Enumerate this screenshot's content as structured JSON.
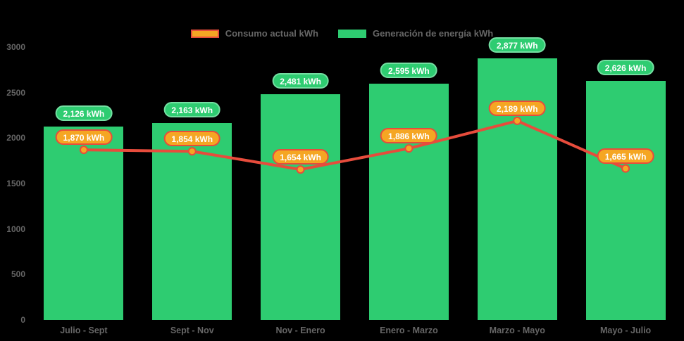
{
  "legend": {
    "items": [
      {
        "label": "Consumo actual kWh",
        "swatch_fill": "#f5a623",
        "swatch_border": "#e74c3c"
      },
      {
        "label": "Generación de energía kWh",
        "swatch_fill": "#2ecc71",
        "swatch_border": "#2ecc71"
      }
    ]
  },
  "colors": {
    "background": "#000000",
    "bar": "#2ecc71",
    "bar_badge_fill": "#2ecc71",
    "bar_badge_border": "#74dfa2",
    "line": "#e74c3c",
    "point_fill": "#f5a623",
    "point_border": "#e74c3c",
    "line_badge_fill": "#f5a623",
    "line_badge_border": "#e74c3c",
    "axis_text": "#666666",
    "badge_text": "#ffffff"
  },
  "chart_data": {
    "type": "bar",
    "categories": [
      "Julio - Sept",
      "Sept - Nov",
      "Nov - Enero",
      "Enero - Marzo",
      "Marzo - Mayo",
      "Mayo - Julio"
    ],
    "series": [
      {
        "name": "Generación de energía kWh",
        "type": "bar",
        "color": "#2ecc71",
        "values": [
          2126,
          2163,
          2481,
          2595,
          2877,
          2626
        ],
        "data_labels": [
          "2,126 kWh",
          "2,163 kWh",
          "2,481 kWh",
          "2,595 kWh",
          "2,877 kWh",
          "2,626 kWh"
        ]
      },
      {
        "name": "Consumo actual kWh",
        "type": "line",
        "color": "#e74c3c",
        "values": [
          1870,
          1854,
          1654,
          1886,
          2189,
          1665
        ],
        "data_labels": [
          "1,870 kWh",
          "1,854 kWh",
          "1,654 kWh",
          "1,886 kWh",
          "2,189 kWh",
          "1,665 kWh"
        ]
      }
    ],
    "title": "",
    "xlabel": "",
    "ylabel": "",
    "ylim": [
      0,
      3000
    ],
    "yticks": [
      0,
      500,
      1000,
      1500,
      2000,
      2500,
      3000
    ],
    "grid": false,
    "legend_position": "top"
  }
}
